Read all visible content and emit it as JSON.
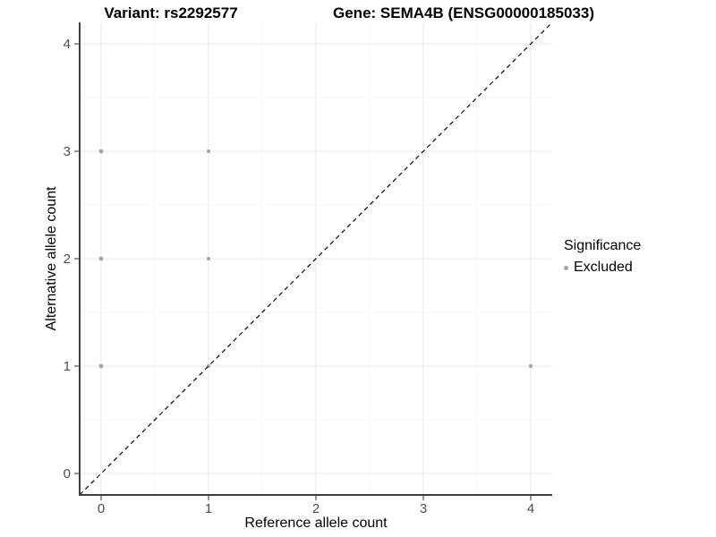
{
  "chart_data": {
    "type": "scatter",
    "titles": {
      "left": "Variant: rs2292577",
      "right": "Gene: SEMA4B (ENSG00000185033)"
    },
    "xlabel": "Reference allele count",
    "ylabel": "Alternative allele count",
    "xlim": [
      -0.2,
      4.2
    ],
    "ylim": [
      -0.2,
      4.2
    ],
    "x_ticks": [
      0,
      1,
      2,
      3,
      4
    ],
    "y_ticks": [
      0,
      1,
      2,
      3,
      4
    ],
    "minor_gridlines": [
      0.5,
      1.5,
      2.5,
      3.5
    ],
    "grid": true,
    "points": [
      {
        "x": 0,
        "y": 1,
        "r": 2.4
      },
      {
        "x": 0,
        "y": 2,
        "r": 2.4
      },
      {
        "x": 0,
        "y": 3,
        "r": 2.4
      },
      {
        "x": 1,
        "y": 1,
        "r": 2.0
      },
      {
        "x": 1,
        "y": 2,
        "r": 2.0
      },
      {
        "x": 1,
        "y": 3,
        "r": 2.0
      },
      {
        "x": 4,
        "y": 1,
        "r": 2.2
      }
    ],
    "point_color": "#a3a3a3",
    "identity_line": {
      "from": [
        -0.2,
        -0.2
      ],
      "to": [
        4.2,
        4.2
      ],
      "color": "#000000",
      "dash": "5,4"
    },
    "colors": {
      "grid_major": "#e9e9e9",
      "grid_minor": "#f5f5f5",
      "axis_line": "#404040",
      "tick_mark": "#333333",
      "tick_label": "#4d4d4d"
    },
    "legend": {
      "title": "Significance",
      "position": "right",
      "items": [
        {
          "label": "Excluded",
          "color": "#a3a3a3"
        }
      ]
    }
  }
}
